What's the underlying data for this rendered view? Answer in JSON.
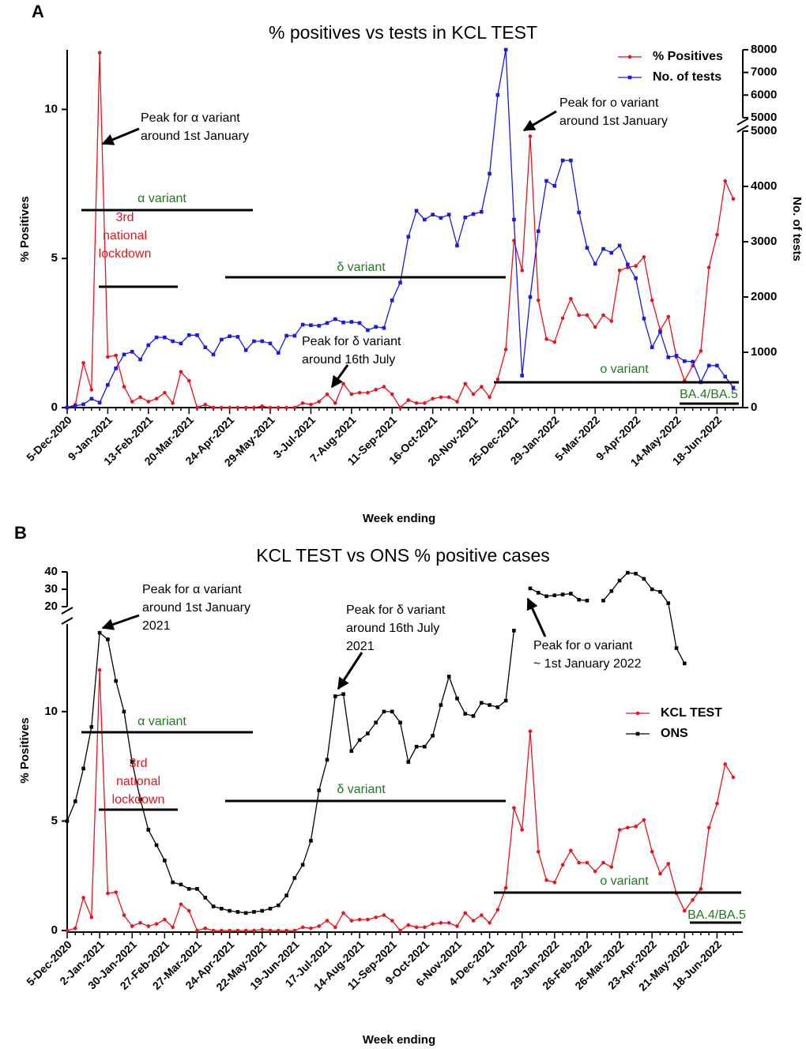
{
  "chart_data": [
    {
      "type": "line",
      "panel_label": "A",
      "title": "% positives vs tests in KCL TEST",
      "xlabel": "Week ending",
      "ylabel": "% Positives",
      "y2label": "No. of tests",
      "legend": "upper right",
      "categories": [
        "5-Dec-2020",
        null,
        null,
        null,
        null,
        "9-Jan-2021",
        null,
        null,
        null,
        null,
        "13-Feb-2021",
        null,
        null,
        null,
        null,
        "20-Mar-2021",
        null,
        null,
        null,
        null,
        "24-Apr-2021",
        null,
        null,
        null,
        null,
        "29-May-2021",
        null,
        null,
        null,
        null,
        "3-Jul-2021",
        null,
        null,
        null,
        null,
        "7-Aug-2021",
        null,
        null,
        null,
        null,
        "11-Sep-2021",
        null,
        null,
        null,
        null,
        "16-Oct-2021",
        null,
        null,
        null,
        null,
        "20-Nov-2021",
        null,
        null,
        null,
        null,
        "25-Dec-2021",
        null,
        null,
        null,
        null,
        "29-Jan-2022",
        null,
        null,
        null,
        null,
        "5-Mar-2022",
        null,
        null,
        null,
        null,
        "9-Apr-2022",
        null,
        null,
        null,
        null,
        "14-May-2022",
        null,
        null,
        null,
        null,
        "18-Jun-2022",
        null,
        null
      ],
      "series": [
        {
          "name": "% Positives",
          "color": "#e8131b",
          "marker": "circle",
          "axis": "y",
          "values": [
            0,
            0.1,
            1.5,
            0.6,
            11.9,
            1.7,
            1.75,
            0.7,
            0.2,
            0.35,
            0.2,
            0.3,
            0.5,
            0.15,
            1.2,
            0.9,
            0,
            0.1,
            0,
            0,
            0,
            0,
            0,
            0,
            0.05,
            0,
            0,
            0,
            0,
            0.15,
            0.1,
            0.2,
            0.45,
            0.15,
            0.8,
            0.45,
            0.5,
            0.5,
            0.6,
            0.7,
            0.45,
            0,
            0.25,
            0.15,
            0.15,
            0.3,
            0.35,
            0.35,
            0.2,
            0.8,
            0.45,
            0.7,
            0.35,
            0.95,
            1.95,
            5.6,
            4.6,
            9.1,
            3.6,
            2.3,
            2.2,
            3.0,
            3.65,
            3.1,
            3.1,
            2.7,
            3.1,
            2.9,
            4.6,
            4.7,
            4.75,
            5.05,
            3.6,
            2.6,
            3.05,
            1.7,
            0.9,
            1.4,
            1.9,
            4.7,
            5.8,
            7.6,
            7.0
          ]
        },
        {
          "name": "No. of tests",
          "color": "#1a1ae0",
          "marker": "square",
          "axis": "y2",
          "values": [
            0,
            30,
            60,
            160,
            90,
            410,
            710,
            960,
            1010,
            870,
            1130,
            1270,
            1270,
            1200,
            1160,
            1310,
            1310,
            1090,
            960,
            1230,
            1290,
            1280,
            1040,
            1200,
            1200,
            1160,
            990,
            1300,
            1300,
            1500,
            1490,
            1480,
            1530,
            1600,
            1540,
            1550,
            1530,
            1400,
            1460,
            1440,
            1940,
            2260,
            3090,
            3560,
            3400,
            3490,
            3430,
            3490,
            2930,
            3440,
            3500,
            3540,
            4230,
            6000,
            8000,
            3400,
            580,
            2000,
            3190,
            4100,
            4010,
            4470,
            4470,
            3530,
            2890,
            2600,
            2870,
            2800,
            2930,
            2590,
            2340,
            1610,
            1090,
            1370,
            910,
            940,
            840,
            830,
            460,
            760,
            760,
            560,
            360
          ]
        }
      ],
      "ylim": [
        0,
        12
      ],
      "yticks": [
        0,
        5,
        10
      ],
      "y2_segments": [
        {
          "lim": [
            0,
            5000
          ],
          "ticks": [
            0,
            1000,
            2000,
            3000,
            4000,
            5000
          ]
        },
        {
          "lim": [
            5000,
            8000
          ],
          "ticks": [
            5000,
            6000,
            7000,
            8000
          ]
        }
      ],
      "annotations": [
        {
          "lines": [
            "Peak for α variant",
            "around 1st January"
          ],
          "color": "#000000"
        },
        {
          "lines": [
            "α variant"
          ],
          "color": "#1e7b1e"
        },
        {
          "lines": [
            "3rd",
            "national",
            "lockdown"
          ],
          "color": "#e8131b"
        },
        {
          "lines": [
            "δ variant"
          ],
          "color": "#1e7b1e"
        },
        {
          "lines": [
            "Peak for δ variant",
            "around 16th July"
          ],
          "color": "#000000"
        },
        {
          "lines": [
            "Peak for o variant",
            "around 1st January"
          ],
          "color": "#000000"
        },
        {
          "lines": [
            "o variant"
          ],
          "color": "#1e7b1e"
        },
        {
          "lines": [
            "BA.4/BA.5"
          ],
          "color": "#1e7b1e"
        }
      ]
    },
    {
      "type": "line",
      "panel_label": "B",
      "title": "KCL TEST vs ONS % positive cases",
      "xlabel": "Week ending",
      "ylabel": "% Positives",
      "legend": "center right",
      "categories": [
        "5-Dec-2020",
        null,
        null,
        null,
        "2-Jan-2021",
        null,
        null,
        null,
        "30-Jan-2021",
        null,
        null,
        null,
        "27-Feb-2021",
        null,
        null,
        null,
        "27-Mar-2021",
        null,
        null,
        null,
        "24-Apr-2021",
        null,
        null,
        null,
        "22-May-2021",
        null,
        null,
        null,
        "19-Jun-2021",
        null,
        null,
        null,
        "17-Jul-2021",
        null,
        null,
        null,
        "14-Aug-2021",
        null,
        null,
        null,
        "11-Sep-2021",
        null,
        null,
        null,
        "9-Oct-2021",
        null,
        null,
        null,
        "6-Nov-2021",
        null,
        null,
        null,
        "4-Dec-2021",
        null,
        null,
        null,
        "1-Jan-2022",
        null,
        null,
        null,
        "29-Jan-2022",
        null,
        null,
        null,
        "26-Feb-2022",
        null,
        null,
        null,
        "26-Mar-2022",
        null,
        null,
        null,
        "23-Apr-2022",
        null,
        null,
        null,
        "21-May-2022",
        null,
        null,
        null,
        "18-Jun-2022",
        null,
        null
      ],
      "series": [
        {
          "name": "KCL TEST",
          "color": "#e8131b",
          "marker": "circle",
          "axis": "y",
          "values": [
            0,
            0.1,
            1.5,
            0.6,
            11.9,
            1.7,
            1.75,
            0.7,
            0.2,
            0.35,
            0.2,
            0.3,
            0.5,
            0.15,
            1.2,
            0.9,
            0,
            0.1,
            0,
            0,
            0,
            0,
            0,
            0,
            0.05,
            0,
            0,
            0,
            0,
            0.15,
            0.1,
            0.2,
            0.45,
            0.15,
            0.8,
            0.45,
            0.5,
            0.5,
            0.6,
            0.7,
            0.45,
            0,
            0.25,
            0.15,
            0.15,
            0.3,
            0.35,
            0.35,
            0.2,
            0.8,
            0.45,
            0.7,
            0.35,
            0.95,
            1.95,
            5.6,
            4.6,
            9.1,
            3.6,
            2.3,
            2.2,
            3.0,
            3.65,
            3.1,
            3.1,
            2.7,
            3.1,
            2.9,
            4.6,
            4.7,
            4.75,
            5.05,
            3.6,
            2.6,
            3.05,
            1.7,
            0.9,
            1.4,
            1.9,
            4.7,
            5.8,
            7.6,
            7.0
          ]
        },
        {
          "name": "ONS",
          "color": "#000000",
          "marker": "square",
          "axis": "y",
          "values": [
            5.0,
            5.9,
            7.4,
            9.3,
            13.6,
            13.3,
            11.4,
            10.0,
            7.7,
            6.0,
            4.6,
            3.9,
            3.2,
            2.2,
            2.1,
            1.9,
            1.9,
            1.5,
            1.1,
            1.0,
            0.9,
            0.85,
            0.8,
            0.85,
            0.9,
            1.0,
            1.15,
            1.6,
            2.4,
            3.0,
            4.1,
            6.4,
            7.8,
            10.7,
            10.8,
            8.2,
            8.7,
            9.0,
            9.5,
            10.0,
            10.0,
            9.5,
            7.7,
            8.4,
            8.4,
            8.9,
            10.3,
            11.6,
            10.6,
            9.9,
            9.8,
            10.4,
            10.3,
            10.2,
            10.5,
            13.7,
            null,
            30.5,
            28,
            26,
            26.5,
            27,
            27.5,
            24,
            23.5,
            null,
            23.5,
            29,
            35,
            39.5,
            39,
            36,
            30,
            28.5,
            22,
            12.9,
            12.2,
            null,
            null,
            null,
            null,
            null,
            null
          ]
        }
      ],
      "y_segments": [
        {
          "lim": [
            0,
            14
          ],
          "ticks": [
            0,
            5,
            10
          ]
        },
        {
          "lim": [
            20,
            40
          ],
          "ticks": [
            20,
            30,
            40
          ]
        }
      ],
      "annotations": [
        {
          "lines": [
            "Peak for α variant",
            "around 1st January",
            "2021"
          ],
          "color": "#000000"
        },
        {
          "lines": [
            "α variant"
          ],
          "color": "#1e7b1e"
        },
        {
          "lines": [
            "3rd",
            "national",
            "lockdown"
          ],
          "color": "#e8131b"
        },
        {
          "lines": [
            "δ variant"
          ],
          "color": "#1e7b1e"
        },
        {
          "lines": [
            "Peak for δ variant",
            "around 16th July",
            "2021"
          ],
          "color": "#000000"
        },
        {
          "lines": [
            "Peak for o variant",
            "~ 1st January 2022"
          ],
          "color": "#000000"
        },
        {
          "lines": [
            "o variant"
          ],
          "color": "#1e7b1e"
        },
        {
          "lines": [
            "BA.4/BA.5"
          ],
          "color": "#1e7b1e"
        }
      ]
    }
  ]
}
